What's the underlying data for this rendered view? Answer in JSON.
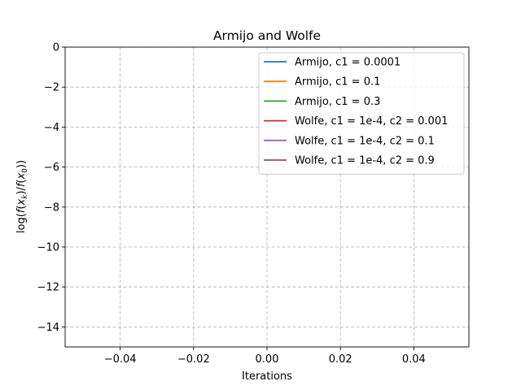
{
  "chart_data": {
    "type": "line",
    "title": "Armijo and Wolfe",
    "xlabel": "Iterations",
    "ylabel": "log(f(x_k)/f(x_0))",
    "xlim": [
      -0.055,
      0.055
    ],
    "ylim": [
      -15,
      0
    ],
    "xticks": [
      -0.04,
      -0.02,
      0.0,
      0.02,
      0.04
    ],
    "xtick_labels": [
      "−0.04",
      "−0.02",
      "0.00",
      "0.02",
      "0.04"
    ],
    "yticks": [
      0,
      -2,
      -4,
      -6,
      -8,
      -10,
      -12,
      -14
    ],
    "ytick_labels": [
      "0",
      "−2",
      "−4",
      "−6",
      "−8",
      "−10",
      "−12",
      "−14"
    ],
    "grid": true,
    "legend_position": "upper right",
    "series": [
      {
        "name": "Armijo, c1 = 0.0001",
        "color": "#1f77b4",
        "x": [],
        "y": []
      },
      {
        "name": "Armijo, c1 = 0.1",
        "color": "#ff7f0e",
        "x": [],
        "y": []
      },
      {
        "name": "Armijo, c1 = 0.3",
        "color": "#2ca02c",
        "x": [],
        "y": []
      },
      {
        "name": "Wolfe, c1 = 1e-4, c2 = 0.001",
        "color": "#d62728",
        "x": [],
        "y": []
      },
      {
        "name": "Wolfe, c1 = 1e-4, c2 = 0.1",
        "color": "#9467bd",
        "x": [],
        "y": []
      },
      {
        "name": "Wolfe, c1 = 1e-4, c2 = 0.9",
        "color": "#8c564b",
        "x": [],
        "y": []
      }
    ]
  }
}
